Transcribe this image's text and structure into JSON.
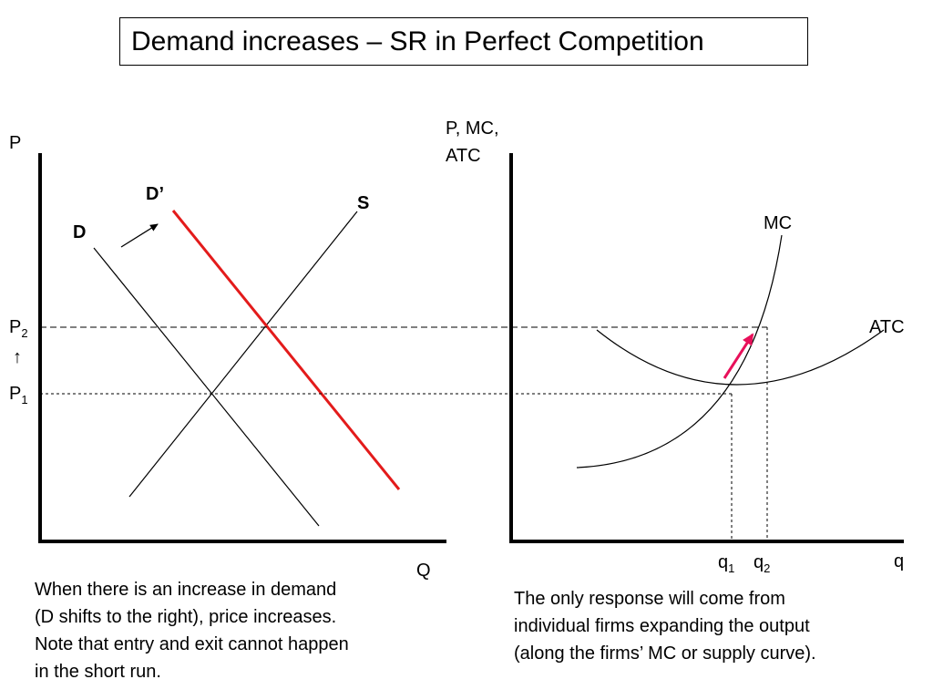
{
  "title": "Demand increases – SR in Perfect Competition",
  "market": {
    "y_axis_label": "P",
    "x_axis_label": "Q",
    "supply_label": "S",
    "demand_label": "D",
    "new_demand_label": "D’",
    "price_2": {
      "base": "P",
      "sub": "2"
    },
    "price_1": {
      "base": "P",
      "sub": "1"
    },
    "up_arrow_glyph": "↑"
  },
  "firm": {
    "y_axis_label_line1": "P, MC,",
    "y_axis_label_line2": "ATC",
    "x_axis_label": "q",
    "mc_label": "MC",
    "atc_label": "ATC",
    "quantity_1": {
      "base": "q",
      "sub": "1"
    },
    "quantity_2": {
      "base": "q",
      "sub": "2"
    }
  },
  "captions": {
    "left": "When there is an increase in demand\n(D shifts to the right), price increases.\nNote that entry and exit cannot happen\nin the short run.",
    "right": "The only response will come from\nindividual firms expanding the output\n(along the firms’ MC or supply curve)."
  },
  "colors": {
    "new_demand": "#e31b1b",
    "movement_arrow": "#e8105a",
    "axes": "#000000"
  }
}
